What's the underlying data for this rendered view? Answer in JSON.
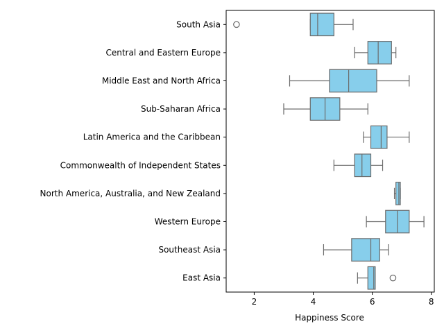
{
  "chart_data": {
    "type": "boxplot",
    "orientation": "horizontal",
    "xlabel": "Happiness Score",
    "ylabel": "",
    "xlim": [
      1.05,
      8.1
    ],
    "xticks": [
      2,
      4,
      6,
      8
    ],
    "box_color": "#87ceeb",
    "line_color": "#6b6b6b",
    "categories": [
      "South Asia",
      "Central and Eastern Europe",
      "Middle East and North Africa",
      "Sub-Saharan Africa",
      "Latin America and the Caribbean",
      "Commonwealth of Independent States",
      "North America, Australia, and New Zealand",
      "Western Europe",
      "Southeast Asia",
      "East Asia"
    ],
    "boxes": [
      {
        "whislo": 3.9,
        "q1": 3.9,
        "med": 4.15,
        "q3": 4.7,
        "whishi": 5.35,
        "fliers": [
          1.4
        ]
      },
      {
        "whislo": 5.4,
        "q1": 5.85,
        "med": 6.2,
        "q3": 6.65,
        "whishi": 6.8,
        "fliers": []
      },
      {
        "whislo": 3.2,
        "q1": 4.55,
        "med": 5.2,
        "q3": 6.15,
        "whishi": 7.25,
        "fliers": []
      },
      {
        "whislo": 3.0,
        "q1": 3.9,
        "med": 4.4,
        "q3": 4.9,
        "whishi": 5.85,
        "fliers": []
      },
      {
        "whislo": 5.7,
        "q1": 5.95,
        "med": 6.3,
        "q3": 6.5,
        "whishi": 7.25,
        "fliers": []
      },
      {
        "whislo": 4.7,
        "q1": 5.4,
        "med": 5.65,
        "q3": 5.95,
        "whishi": 6.35,
        "fliers": []
      },
      {
        "whislo": 6.75,
        "q1": 6.8,
        "med": 6.9,
        "q3": 6.95,
        "whishi": 6.95,
        "fliers": []
      },
      {
        "whislo": 5.8,
        "q1": 6.45,
        "med": 6.85,
        "q3": 7.25,
        "whishi": 7.75,
        "fliers": []
      },
      {
        "whislo": 4.35,
        "q1": 5.3,
        "med": 5.95,
        "q3": 6.25,
        "whishi": 6.55,
        "fliers": []
      },
      {
        "whislo": 5.5,
        "q1": 5.85,
        "med": 6.05,
        "q3": 6.1,
        "whishi": 6.1,
        "fliers": [
          6.7
        ]
      }
    ]
  }
}
